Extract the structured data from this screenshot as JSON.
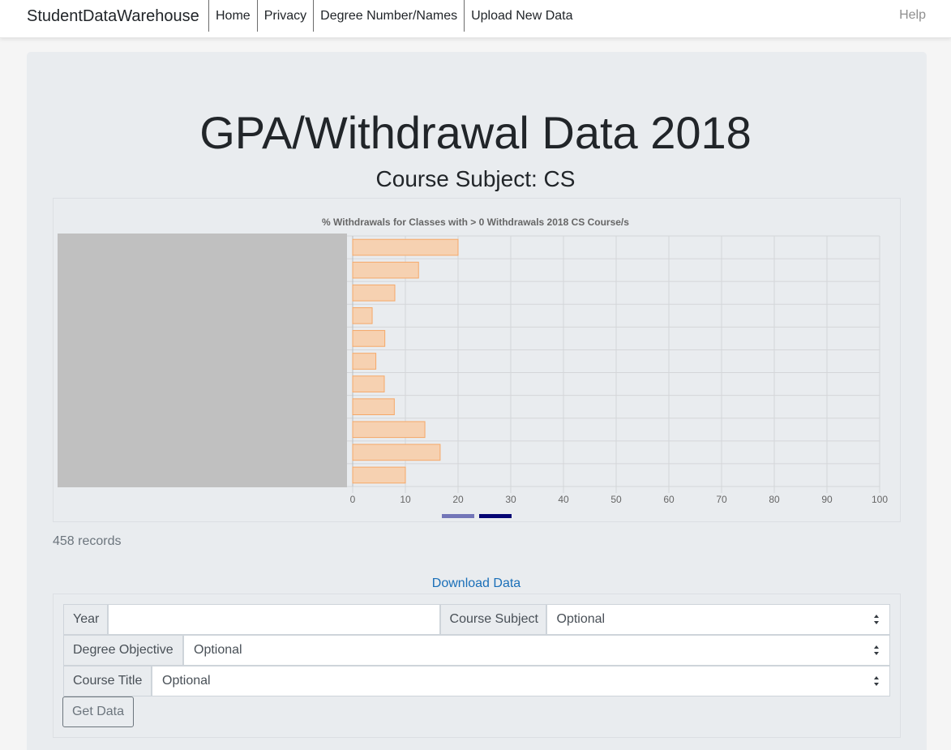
{
  "navbar": {
    "brand": "StudentDataWarehouse",
    "links": [
      "Home",
      "Privacy",
      "Degree Number/Names",
      "Upload New Data"
    ],
    "help": "Help"
  },
  "page": {
    "title": "GPA/Withdrawal Data 2018",
    "subtitle": "Course Subject: CS",
    "records": "458 records",
    "download": "Download Data"
  },
  "chart_data": {
    "type": "bar",
    "orientation": "horizontal",
    "title": "% Withdrawals for Classes with > 0 Withdrawals 2018 CS Course/s",
    "values": [
      20,
      12.5,
      8,
      3.7,
      6.1,
      4.4,
      6,
      7.9,
      13.7,
      16.6,
      10
    ],
    "xlim": [
      0,
      100
    ],
    "xticks": [
      "0",
      "10",
      "20",
      "30",
      "40",
      "50",
      "60",
      "70",
      "80",
      "90",
      "100"
    ],
    "grid": true,
    "colors": {
      "bar_fill": "#f6d1b1",
      "bar_stroke": "#f5a868",
      "legend": [
        "#7376b8",
        "#050573"
      ]
    }
  },
  "form": {
    "year_label": "Year",
    "year_value": "",
    "course_subject_label": "Course Subject",
    "course_subject_value": "Optional",
    "degree_objective_label": "Degree Objective",
    "degree_objective_value": "Optional",
    "course_title_label": "Course Title",
    "course_title_value": "Optional",
    "submit_label": "Get Data"
  }
}
